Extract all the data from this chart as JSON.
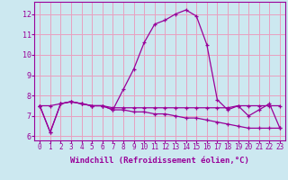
{
  "title": "",
  "xlabel": "Windchill (Refroidissement éolien,°C)",
  "background_color": "#cce8f0",
  "grid_color": "#e8a0c0",
  "line_color": "#990099",
  "spine_color": "#990099",
  "xlim": [
    -0.5,
    23.5
  ],
  "ylim": [
    5.8,
    12.6
  ],
  "xticks": [
    0,
    1,
    2,
    3,
    4,
    5,
    6,
    7,
    8,
    9,
    10,
    11,
    12,
    13,
    14,
    15,
    16,
    17,
    18,
    19,
    20,
    21,
    22,
    23
  ],
  "yticks": [
    6,
    7,
    8,
    9,
    10,
    11,
    12
  ],
  "hours": [
    0,
    1,
    2,
    3,
    4,
    5,
    6,
    7,
    8,
    9,
    10,
    11,
    12,
    13,
    14,
    15,
    16,
    17,
    18,
    19,
    20,
    21,
    22,
    23
  ],
  "temp_line": [
    7.5,
    6.2,
    7.6,
    7.7,
    7.6,
    7.5,
    7.5,
    7.3,
    8.3,
    9.3,
    10.6,
    11.5,
    11.7,
    12.0,
    12.2,
    11.9,
    10.5,
    7.8,
    7.3,
    7.5,
    7.0,
    7.3,
    7.6,
    6.4
  ],
  "flat_line": [
    7.5,
    7.5,
    7.6,
    7.7,
    7.6,
    7.5,
    7.5,
    7.4,
    7.4,
    7.4,
    7.4,
    7.4,
    7.4,
    7.4,
    7.4,
    7.4,
    7.4,
    7.4,
    7.4,
    7.5,
    7.5,
    7.5,
    7.5,
    7.5
  ],
  "wind_line": [
    7.5,
    6.2,
    7.6,
    7.7,
    7.6,
    7.5,
    7.5,
    7.3,
    7.3,
    7.2,
    7.2,
    7.1,
    7.1,
    7.0,
    6.9,
    6.9,
    6.8,
    6.7,
    6.6,
    6.5,
    6.4,
    6.4,
    6.4,
    6.4
  ],
  "xlabel_fontsize": 6.5,
  "tick_fontsize": 5.5
}
